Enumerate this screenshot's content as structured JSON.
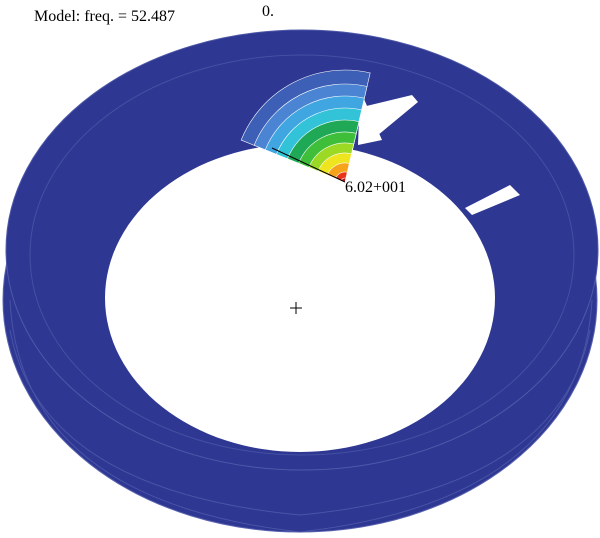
{
  "header": {
    "model_label": "Model: freq. = 52.487",
    "min_label": "0."
  },
  "annotation": {
    "max_label": "6.02+001"
  }
}
